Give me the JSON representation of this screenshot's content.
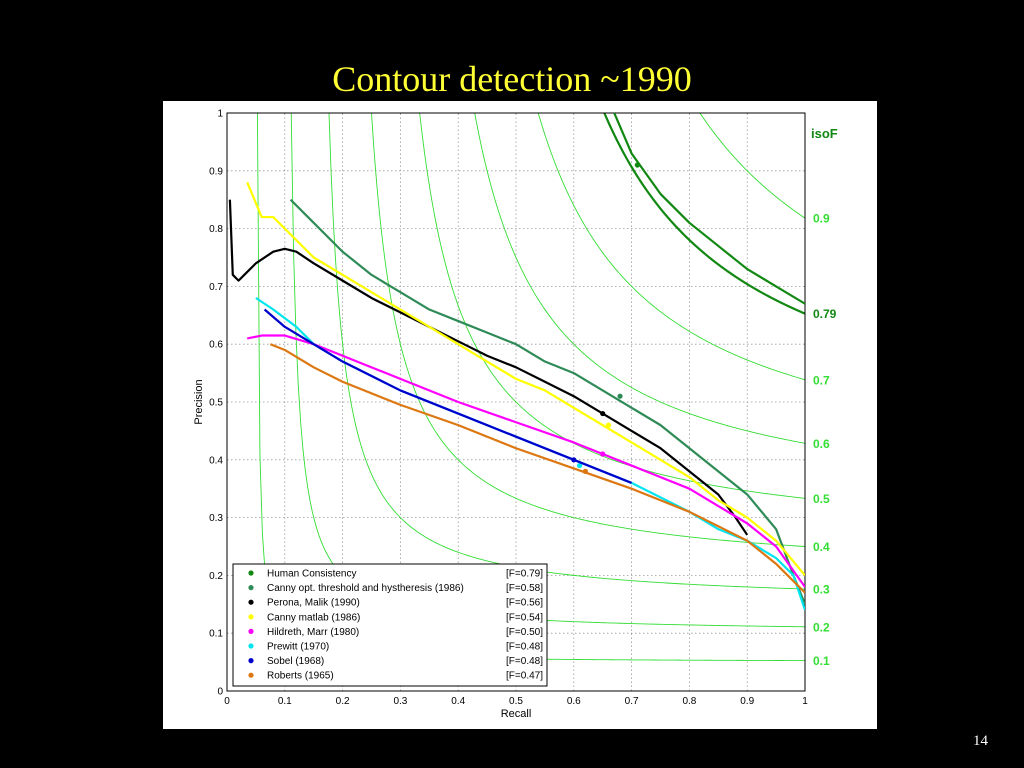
{
  "slide": {
    "title": "Contour detection ~1990",
    "page_number": "14"
  },
  "chart_data": {
    "type": "line",
    "xlabel": "Recall",
    "ylabel": "Precision",
    "xlim": [
      0,
      1
    ],
    "ylim": [
      0,
      1
    ],
    "xticks": [
      "0",
      "0.1",
      "0.2",
      "0.3",
      "0.4",
      "0.5",
      "0.6",
      "0.7",
      "0.8",
      "0.9",
      "1"
    ],
    "yticks": [
      "0",
      "0.1",
      "0.2",
      "0.3",
      "0.4",
      "0.5",
      "0.6",
      "0.7",
      "0.8",
      "0.9",
      "1"
    ],
    "grid": true,
    "legend_position": "bottom-left",
    "isoF": {
      "title": "isoF",
      "levels": [
        0.1,
        0.2,
        0.3,
        0.4,
        0.5,
        0.6,
        0.7,
        0.79,
        0.9
      ],
      "labels": [
        "0.1",
        "0.2",
        "0.3",
        "0.4",
        "0.5",
        "0.6",
        "0.7",
        "0.79",
        "0.9"
      ],
      "color": "#33dd33",
      "highlight_color": "#118811"
    },
    "series": [
      {
        "name": "Human  Consistency",
        "fscore": "[F=0.79]",
        "color": "#118811",
        "marker": [
          0.71,
          0.91
        ],
        "x": [
          0.67,
          0.7,
          0.75,
          0.8,
          0.85,
          0.9,
          0.95,
          1.0
        ],
        "y": [
          1.0,
          0.93,
          0.86,
          0.81,
          0.77,
          0.73,
          0.7,
          0.67
        ]
      },
      {
        "name": "Canny opt. threshold and hystheresis (1986)",
        "fscore": "[F=0.58]",
        "color": "#2e8b57",
        "marker": [
          0.68,
          0.51
        ],
        "x": [
          0.11,
          0.15,
          0.2,
          0.25,
          0.3,
          0.35,
          0.4,
          0.45,
          0.5,
          0.55,
          0.6,
          0.65,
          0.7,
          0.75,
          0.8,
          0.85,
          0.9,
          0.95,
          0.98,
          1.0
        ],
        "y": [
          0.85,
          0.81,
          0.76,
          0.72,
          0.69,
          0.66,
          0.64,
          0.62,
          0.6,
          0.57,
          0.55,
          0.52,
          0.49,
          0.46,
          0.42,
          0.38,
          0.34,
          0.28,
          0.2,
          0.15
        ]
      },
      {
        "name": "Perona, Malik (1990)",
        "fscore": "[F=0.56]",
        "color": "#000000",
        "marker": [
          0.65,
          0.48
        ],
        "x": [
          0.005,
          0.01,
          0.02,
          0.03,
          0.05,
          0.08,
          0.1,
          0.12,
          0.15,
          0.2,
          0.25,
          0.3,
          0.35,
          0.4,
          0.45,
          0.5,
          0.55,
          0.6,
          0.65,
          0.7,
          0.75,
          0.8,
          0.85,
          0.88,
          0.9
        ],
        "y": [
          0.85,
          0.72,
          0.71,
          0.72,
          0.74,
          0.76,
          0.765,
          0.76,
          0.74,
          0.71,
          0.68,
          0.655,
          0.63,
          0.605,
          0.58,
          0.56,
          0.535,
          0.51,
          0.48,
          0.45,
          0.42,
          0.38,
          0.34,
          0.3,
          0.27
        ]
      },
      {
        "name": "Canny matlab (1986)",
        "fscore": "[F=0.54]",
        "color": "#ffff00",
        "marker": [
          0.66,
          0.46
        ],
        "x": [
          0.035,
          0.06,
          0.08,
          0.1,
          0.15,
          0.2,
          0.25,
          0.3,
          0.35,
          0.4,
          0.45,
          0.5,
          0.55,
          0.6,
          0.65,
          0.7,
          0.75,
          0.8,
          0.85,
          0.9,
          0.95,
          1.0
        ],
        "y": [
          0.88,
          0.82,
          0.82,
          0.8,
          0.75,
          0.72,
          0.69,
          0.66,
          0.63,
          0.6,
          0.57,
          0.54,
          0.52,
          0.49,
          0.46,
          0.43,
          0.4,
          0.37,
          0.33,
          0.3,
          0.26,
          0.2
        ]
      },
      {
        "name": "Hildreth, Marr (1980)",
        "fscore": "[F=0.50]",
        "color": "#ff00ff",
        "marker": [
          0.65,
          0.41
        ],
        "x": [
          0.035,
          0.06,
          0.1,
          0.15,
          0.2,
          0.3,
          0.4,
          0.5,
          0.6,
          0.7,
          0.75,
          0.8,
          0.85,
          0.9,
          0.95,
          1.0
        ],
        "y": [
          0.61,
          0.615,
          0.615,
          0.6,
          0.58,
          0.54,
          0.5,
          0.465,
          0.43,
          0.39,
          0.37,
          0.35,
          0.32,
          0.29,
          0.25,
          0.18
        ]
      },
      {
        "name": "Prewitt  (1970)",
        "fscore": "[F=0.48]",
        "color": "#00e5ee",
        "marker": [
          0.61,
          0.39
        ],
        "x": [
          0.05,
          0.08,
          0.12,
          0.15,
          0.2,
          0.3,
          0.4,
          0.5,
          0.6,
          0.7,
          0.8,
          0.85,
          0.9,
          0.95,
          0.98,
          1.0
        ],
        "y": [
          0.68,
          0.66,
          0.63,
          0.6,
          0.57,
          0.52,
          0.48,
          0.44,
          0.4,
          0.36,
          0.31,
          0.28,
          0.26,
          0.23,
          0.2,
          0.14
        ]
      },
      {
        "name": "Sobel  (1968)",
        "fscore": "[F=0.48]",
        "color": "#0000cc",
        "marker": [
          0.6,
          0.4
        ],
        "x": [
          0.065,
          0.1,
          0.15,
          0.2,
          0.3,
          0.4,
          0.5,
          0.6,
          0.7
        ],
        "y": [
          0.66,
          0.63,
          0.6,
          0.57,
          0.52,
          0.48,
          0.44,
          0.4,
          0.36
        ]
      },
      {
        "name": "Roberts (1965)",
        "fscore": "[F=0.47]",
        "color": "#dd7711",
        "marker": [
          0.62,
          0.38
        ],
        "x": [
          0.075,
          0.1,
          0.15,
          0.2,
          0.3,
          0.4,
          0.5,
          0.6,
          0.7,
          0.8,
          0.9,
          0.95,
          1.0
        ],
        "y": [
          0.6,
          0.59,
          0.56,
          0.535,
          0.495,
          0.46,
          0.42,
          0.385,
          0.35,
          0.31,
          0.26,
          0.22,
          0.17
        ]
      }
    ]
  }
}
